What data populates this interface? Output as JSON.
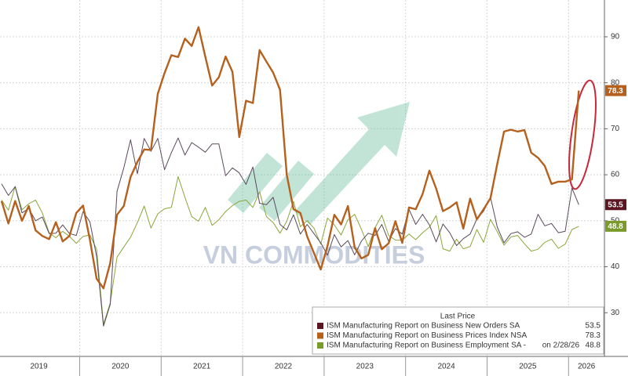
{
  "chart_data": {
    "type": "line",
    "watermark": "VN COMMODITIES",
    "legend_title": "Last Price",
    "as_of": "on 2/28/26",
    "categories": [
      "2019",
      null,
      null,
      null,
      null,
      null,
      null,
      null,
      null,
      null,
      null,
      null,
      "2020",
      null,
      null,
      null,
      null,
      null,
      null,
      null,
      null,
      null,
      null,
      null,
      "2021",
      null,
      null,
      null,
      null,
      null,
      null,
      null,
      null,
      null,
      null,
      null,
      "2022",
      null,
      null,
      null,
      null,
      null,
      null,
      null,
      null,
      null,
      null,
      null,
      "2023",
      null,
      null,
      null,
      null,
      null,
      null,
      null,
      null,
      null,
      null,
      null,
      "2024",
      null,
      null,
      null,
      null,
      null,
      null,
      null,
      null,
      null,
      null,
      null,
      "2025",
      null,
      null,
      null,
      null,
      null,
      null,
      null,
      null,
      null,
      null,
      null,
      "2026",
      null
    ],
    "series": [
      {
        "name": "ISM Manufacturing Report on Business New Orders SA",
        "color": "#5a4a5c",
        "label_color": "#5c1420",
        "values": [
          58,
          55.5,
          57.4,
          51.7,
          52.7,
          50,
          50.8,
          47.2,
          47.3,
          49.1,
          47.2,
          46.8,
          52,
          49.8,
          42.2,
          27.1,
          31.8,
          56.4,
          61.5,
          67.6,
          60.2,
          67.9,
          65.1,
          67.9,
          61.1,
          64.8,
          68,
          64.3,
          67,
          66,
          64.9,
          66.7,
          66.7,
          59.8,
          61.5,
          60.4,
          57.9,
          61.7,
          53.8,
          53.5,
          55.1,
          49.2,
          48,
          51.3,
          47.1,
          49.2,
          47.2,
          45.2,
          42.5,
          47,
          44.3,
          45.7,
          42.6,
          45.6,
          47.3,
          46.8,
          49.2,
          45.5,
          48.3,
          47.1,
          52.5,
          49.2,
          51.4,
          49.1,
          45.4,
          49.3,
          47.4,
          44.6,
          46.1,
          47.1,
          50.4,
          52.1,
          55.1,
          48.6,
          45.2,
          47.2,
          47.6,
          46.4,
          47.1,
          51.4,
          48.9,
          49.4,
          47.4,
          47.7,
          57.1,
          53.5
        ]
      },
      {
        "name": "ISM Manufacturing Report on Business Prices Index NSA",
        "color": "#b5601c",
        "label_color": "#b5601c",
        "values": [
          54.3,
          49.4,
          54.3,
          50,
          53.2,
          47.9,
          46.7,
          46,
          49.7,
          45.5,
          46.7,
          51.7,
          53.3,
          45.9,
          37.4,
          35.3,
          40.8,
          51.3,
          53.2,
          59.5,
          62.8,
          65.5,
          65.4,
          77.6,
          82.1,
          86,
          85.6,
          89.6,
          88,
          92.1,
          85.7,
          79.4,
          81.2,
          85.7,
          82.4,
          68.2,
          76.1,
          75.6,
          87.1,
          84.6,
          82.2,
          78.5,
          60,
          52.5,
          51.7,
          46.6,
          43,
          39.4,
          44.5,
          51.3,
          49.2,
          53.2,
          44.2,
          41.8,
          42.6,
          48.4,
          43.8,
          45.1,
          49.9,
          45.2,
          52.9,
          52.5,
          55.8,
          60.9,
          57,
          52.1,
          52.9,
          54,
          48.3,
          54.8,
          50.3,
          52.5,
          54.9,
          62.4,
          69.4,
          69.8,
          69.4,
          69.7,
          64.8,
          63.7,
          61.9,
          58,
          58.5,
          58.5,
          59,
          78.3
        ]
      },
      {
        "name": "ISM Manufacturing Report on Business Employment SA -",
        "color": "#8aa63a",
        "label_color": "#7a9a2a",
        "values": [
          54.5,
          52.3,
          57.5,
          52.4,
          53.7,
          54.5,
          51.7,
          47.4,
          46.3,
          47.7,
          46.6,
          45.1,
          46.6,
          46.9,
          43.8,
          27.5,
          32.1,
          42.1,
          44.3,
          46.4,
          49.6,
          53.2,
          48.4,
          51.5,
          52.6,
          52.9,
          59.6,
          55.1,
          50.9,
          49.9,
          52.9,
          49,
          50.2,
          52,
          53.3,
          54.2,
          54.5,
          52.9,
          56.3,
          50.9,
          49.6,
          47.3,
          49.9,
          54.2,
          48.7,
          50,
          48.4,
          44.9,
          50.6,
          49.1,
          46.9,
          50.2,
          51.4,
          48.1,
          44.4,
          48.5,
          51.2,
          46.8,
          45.8,
          45.8,
          47.1,
          45.9,
          47.4,
          48.6,
          51.1,
          43.9,
          43.4,
          46,
          43.9,
          44.4,
          48.1,
          45.3,
          50.3,
          47.6,
          44.7,
          46.5,
          46.8,
          45,
          43.4,
          43.8,
          45.3,
          46,
          44,
          44.9,
          48.1,
          48.8
        ]
      }
    ],
    "ylim": [
      20.5,
      98
    ],
    "yticks": [
      30,
      40,
      50,
      60,
      70,
      80,
      90
    ],
    "grid": true
  }
}
